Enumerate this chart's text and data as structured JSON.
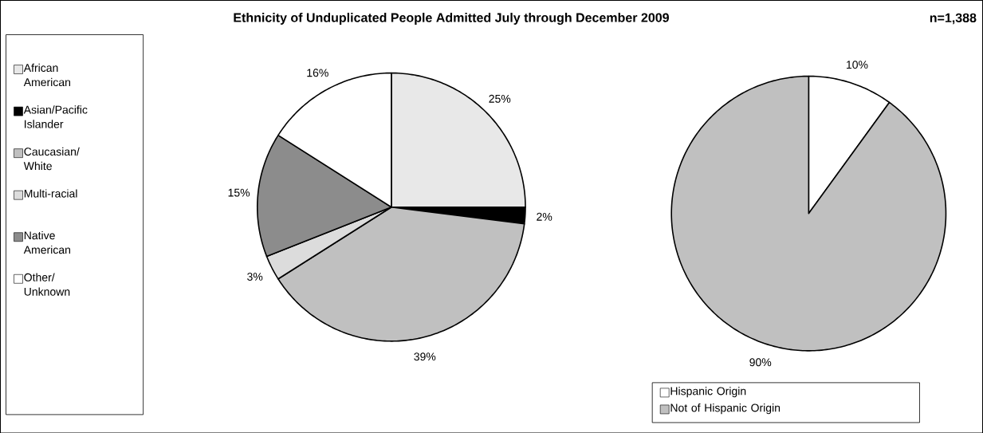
{
  "chart_data": [
    {
      "type": "pie",
      "title": "Ethnicity of Unduplicated People Admitted July through December 2009",
      "annotations": [
        "n=1,388"
      ],
      "categories": [
        "African American",
        "Asian/Pacific Islander",
        "Caucasian/ White",
        "Multi-racial",
        "Native American",
        "Other/ Unknown"
      ],
      "values": [
        25,
        2,
        39,
        3,
        15,
        16
      ],
      "value_labels": [
        "25%",
        "2%",
        "39%",
        "3%",
        "15%",
        "16%"
      ],
      "colors": [
        "#e8e8e8",
        "#000000",
        "#c0c0c0",
        "#dcdcdc",
        "#8c8c8c",
        "#ffffff"
      ],
      "legend": "left"
    },
    {
      "type": "pie",
      "categories": [
        "Hispanic Origin",
        "Not of Hispanic Origin"
      ],
      "values": [
        10,
        90
      ],
      "value_labels": [
        "10%",
        "90%"
      ],
      "colors": [
        "#ffffff",
        "#c0c0c0"
      ],
      "legend": "bottom"
    }
  ]
}
